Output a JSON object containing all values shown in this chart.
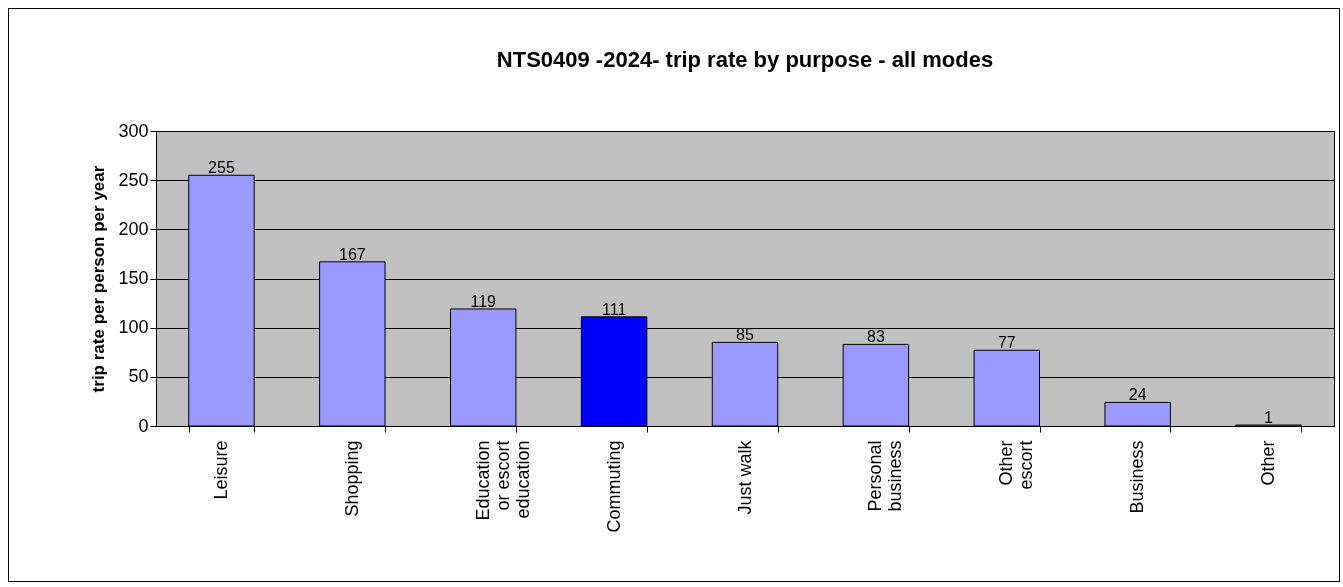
{
  "chart_data": {
    "type": "bar",
    "title": "NTS0409 -2024- trip rate by purpose - all modes",
    "ylabel": "trip rate per person per year",
    "categories": [
      "Leisure",
      "Shopping",
      "Education or escort education",
      "Commuting",
      "Just walk",
      "Personal business",
      "Other escort",
      "Business",
      "Other"
    ],
    "values": [
      255,
      167,
      119,
      111,
      85,
      83,
      77,
      24,
      1
    ],
    "colors": [
      "#9999ff",
      "#9999ff",
      "#9999ff",
      "#0000ff",
      "#9999ff",
      "#9999ff",
      "#9999ff",
      "#9999ff",
      "#9999ff"
    ],
    "ylim": [
      0,
      300
    ],
    "yticks": [
      0,
      50,
      100,
      150,
      200,
      250,
      300
    ],
    "grid": "y",
    "data_labels": true
  }
}
